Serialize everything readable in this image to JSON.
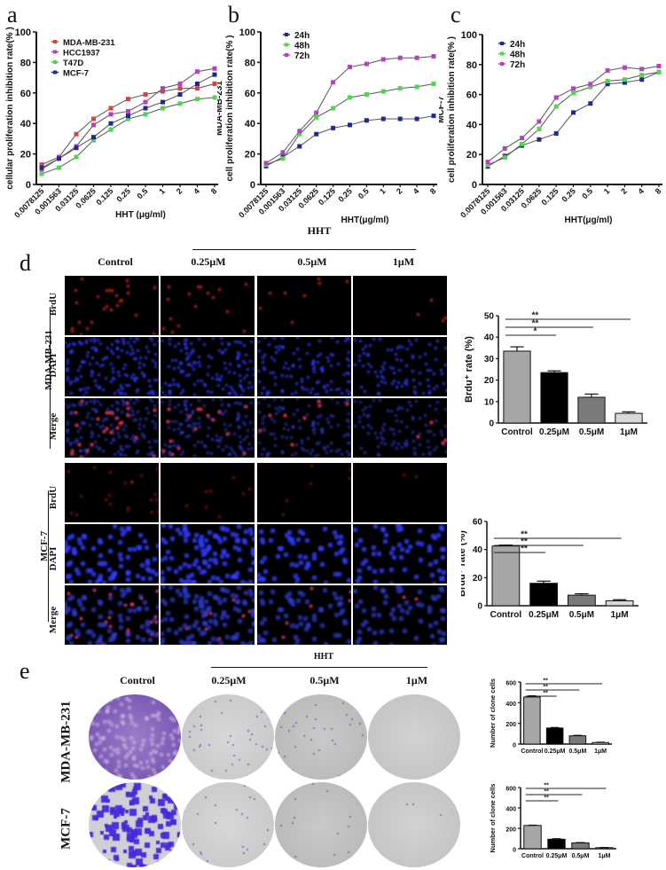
{
  "panels": {
    "a": {
      "letter": "a"
    },
    "b": {
      "letter": "b"
    },
    "c": {
      "letter": "c"
    },
    "d": {
      "letter": "d",
      "treatment_header": "HHT",
      "columns": [
        "Control",
        "0.25μM",
        "0.5μM",
        "1μM"
      ],
      "cell_lines": [
        "MDA-MB-231",
        "MCF-7"
      ],
      "channels": [
        "BrdU",
        "DAPI",
        "Merge"
      ]
    },
    "e": {
      "letter": "e",
      "treatment_header": "HHT",
      "columns": [
        "Control",
        "0.25μM",
        "0.5μM",
        "1μM"
      ],
      "cell_lines": [
        "MDA-MB-231",
        "MCF-7"
      ]
    }
  },
  "colors": {
    "red": "#d9413a",
    "magenta": "#b83fc1",
    "green": "#4fd64f",
    "navy": "#1f2a8a",
    "bar_control": "#a6a6a6",
    "bar_025": "#000000",
    "bar_05": "#7a7a7a",
    "bar_1": "#d9d9d9"
  },
  "chart_data": [
    {
      "id": "a",
      "type": "line",
      "title": "",
      "xlabel": "HHT (μg/ml)",
      "ylabel": "cellular proliferation inhibition rate(% )",
      "ylim": [
        0,
        100
      ],
      "yticks": [
        0,
        20,
        40,
        60,
        80,
        100
      ],
      "categories": [
        "0.0078125",
        "0.001563",
        "0.03125",
        "0.0625",
        "0.125",
        "0.25",
        "0.5",
        "1",
        "2",
        "4",
        "8"
      ],
      "legend_position": "upper-left",
      "series": [
        {
          "name": "MDA-MB-231",
          "color": "#d9413a",
          "values": [
            13,
            18,
            33,
            43,
            50,
            56,
            59,
            61,
            63,
            63,
            66
          ]
        },
        {
          "name": "HCC1937",
          "color": "#b83fc1",
          "values": [
            10,
            17,
            25,
            39,
            46,
            48,
            54,
            63,
            66,
            74,
            76
          ]
        },
        {
          "name": "T47D",
          "color": "#4fd64f",
          "values": [
            7,
            11,
            18,
            29,
            36,
            43,
            46,
            50,
            53,
            56,
            57
          ]
        },
        {
          "name": "MCF-7",
          "color": "#1f2a8a",
          "values": [
            11,
            17,
            24,
            31,
            40,
            45,
            50,
            54,
            59,
            66,
            72
          ]
        }
      ]
    },
    {
      "id": "b",
      "type": "line",
      "title": "",
      "xlabel": "HHT(μg/ml)",
      "ylabel": "MDA-MB-231\ncell proliferation inhibition rate(% )",
      "ylabel_line1": "MDA-MB-231",
      "ylabel_line2": "cell proliferation inhibition rate(% )",
      "ylim": [
        0,
        100
      ],
      "yticks": [
        0,
        20,
        40,
        60,
        80,
        100
      ],
      "categories": [
        "0.0078125",
        "0.001563",
        "0.03125",
        "0.0625",
        "0.125",
        "0.25",
        "0.5",
        "1",
        "2",
        "4",
        "8"
      ],
      "legend_position": "upper-left",
      "series": [
        {
          "name": "24h",
          "color": "#1f2a8a",
          "values": [
            12,
            18,
            25,
            33,
            37,
            39,
            42,
            43,
            43,
            43,
            45
          ]
        },
        {
          "name": "48h",
          "color": "#4fd64f",
          "values": [
            13,
            17,
            33,
            44,
            50,
            57,
            59,
            61,
            63,
            64,
            66
          ]
        },
        {
          "name": "72h",
          "color": "#b83fc1",
          "values": [
            14,
            21,
            35,
            47,
            67,
            77,
            79,
            82,
            83,
            83,
            84
          ]
        }
      ]
    },
    {
      "id": "c",
      "type": "line",
      "title": "",
      "xlabel": "HHT(μg/ml)",
      "ylabel": "MCF-7\ncell proliferation inhibition rate(% )",
      "ylabel_line1": "MCF-7",
      "ylabel_line2": "cell proliferation inhibition rate(% )",
      "ylim": [
        0,
        100
      ],
      "yticks": [
        0,
        20,
        40,
        60,
        80,
        100
      ],
      "categories": [
        "0.0078125",
        "0.001563",
        "0.03125",
        "0.0625",
        "0.125",
        "0.25",
        "0.5",
        "1",
        "2",
        "4",
        "8"
      ],
      "legend_position": "upper-left",
      "series": [
        {
          "name": "24h",
          "color": "#1f2a8a",
          "values": [
            12,
            19,
            26,
            30,
            34,
            48,
            54,
            67,
            68,
            70,
            75
          ]
        },
        {
          "name": "48h",
          "color": "#4fd64f",
          "values": [
            13,
            18,
            27,
            37,
            52,
            61,
            65,
            69,
            70,
            73,
            75
          ]
        },
        {
          "name": "72h",
          "color": "#b83fc1",
          "values": [
            15,
            24,
            31,
            42,
            58,
            64,
            67,
            76,
            78,
            77,
            79
          ]
        }
      ]
    },
    {
      "id": "d-mda",
      "type": "bar",
      "title": "",
      "xlabel": "",
      "ylabel": "Brdu⁺ rate (%)",
      "ylim": [
        0,
        50
      ],
      "yticks": [
        0,
        10,
        20,
        30,
        40,
        50
      ],
      "categories": [
        "Control",
        "0.25μM",
        "0.5μM",
        "1μM"
      ],
      "values": [
        33.5,
        23.5,
        12,
        4.5
      ],
      "errors": [
        2,
        0.8,
        1.5,
        0.7
      ],
      "colors": [
        "#a6a6a6",
        "#000000",
        "#7a7a7a",
        "#d9d9d9"
      ],
      "significance": [
        {
          "from": 0,
          "to": 1,
          "label": "*"
        },
        {
          "from": 0,
          "to": 2,
          "label": "**"
        },
        {
          "from": 0,
          "to": 3,
          "label": "**"
        }
      ]
    },
    {
      "id": "d-mcf7",
      "type": "bar",
      "title": "",
      "xlabel": "",
      "ylabel": "Brdu⁺ rate (%)",
      "ylim": [
        0,
        60
      ],
      "yticks": [
        0,
        20,
        40,
        60
      ],
      "categories": [
        "Control",
        "0.25μM",
        "0.5μM",
        "1μM"
      ],
      "values": [
        42.5,
        16,
        7.5,
        3.5
      ],
      "errors": [
        0.7,
        1.5,
        1,
        0.8
      ],
      "colors": [
        "#a6a6a6",
        "#000000",
        "#7a7a7a",
        "#d9d9d9"
      ],
      "significance": [
        {
          "from": 0,
          "to": 1,
          "label": "**"
        },
        {
          "from": 0,
          "to": 2,
          "label": "**"
        },
        {
          "from": 0,
          "to": 3,
          "label": "**"
        }
      ]
    },
    {
      "id": "e-mda",
      "type": "bar",
      "title": "",
      "xlabel": "",
      "ylabel": "Number of clone cells",
      "ylim": [
        0,
        600
      ],
      "yticks": [
        0,
        200,
        400,
        600
      ],
      "categories": [
        "Control",
        "0.25μM",
        "0.5μM",
        "1μM"
      ],
      "values": [
        455,
        155,
        80,
        15
      ],
      "errors": [
        12,
        5,
        4,
        3
      ],
      "colors": [
        "#a6a6a6",
        "#000000",
        "#7a7a7a",
        "#d9d9d9"
      ],
      "significance": [
        {
          "from": 0,
          "to": 1,
          "label": "**"
        },
        {
          "from": 0,
          "to": 2,
          "label": "**"
        },
        {
          "from": 0,
          "to": 3,
          "label": "**"
        }
      ]
    },
    {
      "id": "e-mcf7",
      "type": "bar",
      "title": "",
      "xlabel": "",
      "ylabel": "Number of clone cells",
      "ylim": [
        0,
        600
      ],
      "yticks": [
        0,
        200,
        400,
        600
      ],
      "categories": [
        "Control",
        "0.25μM",
        "0.5μM",
        "1μM"
      ],
      "values": [
        228,
        93,
        57,
        10
      ],
      "errors": [
        3,
        5,
        3,
        2
      ],
      "colors": [
        "#a6a6a6",
        "#000000",
        "#7a7a7a",
        "#d9d9d9"
      ],
      "significance": [
        {
          "from": 0,
          "to": 1,
          "label": "**"
        },
        {
          "from": 0,
          "to": 2,
          "label": "**"
        },
        {
          "from": 0,
          "to": 3,
          "label": "**"
        }
      ]
    }
  ]
}
